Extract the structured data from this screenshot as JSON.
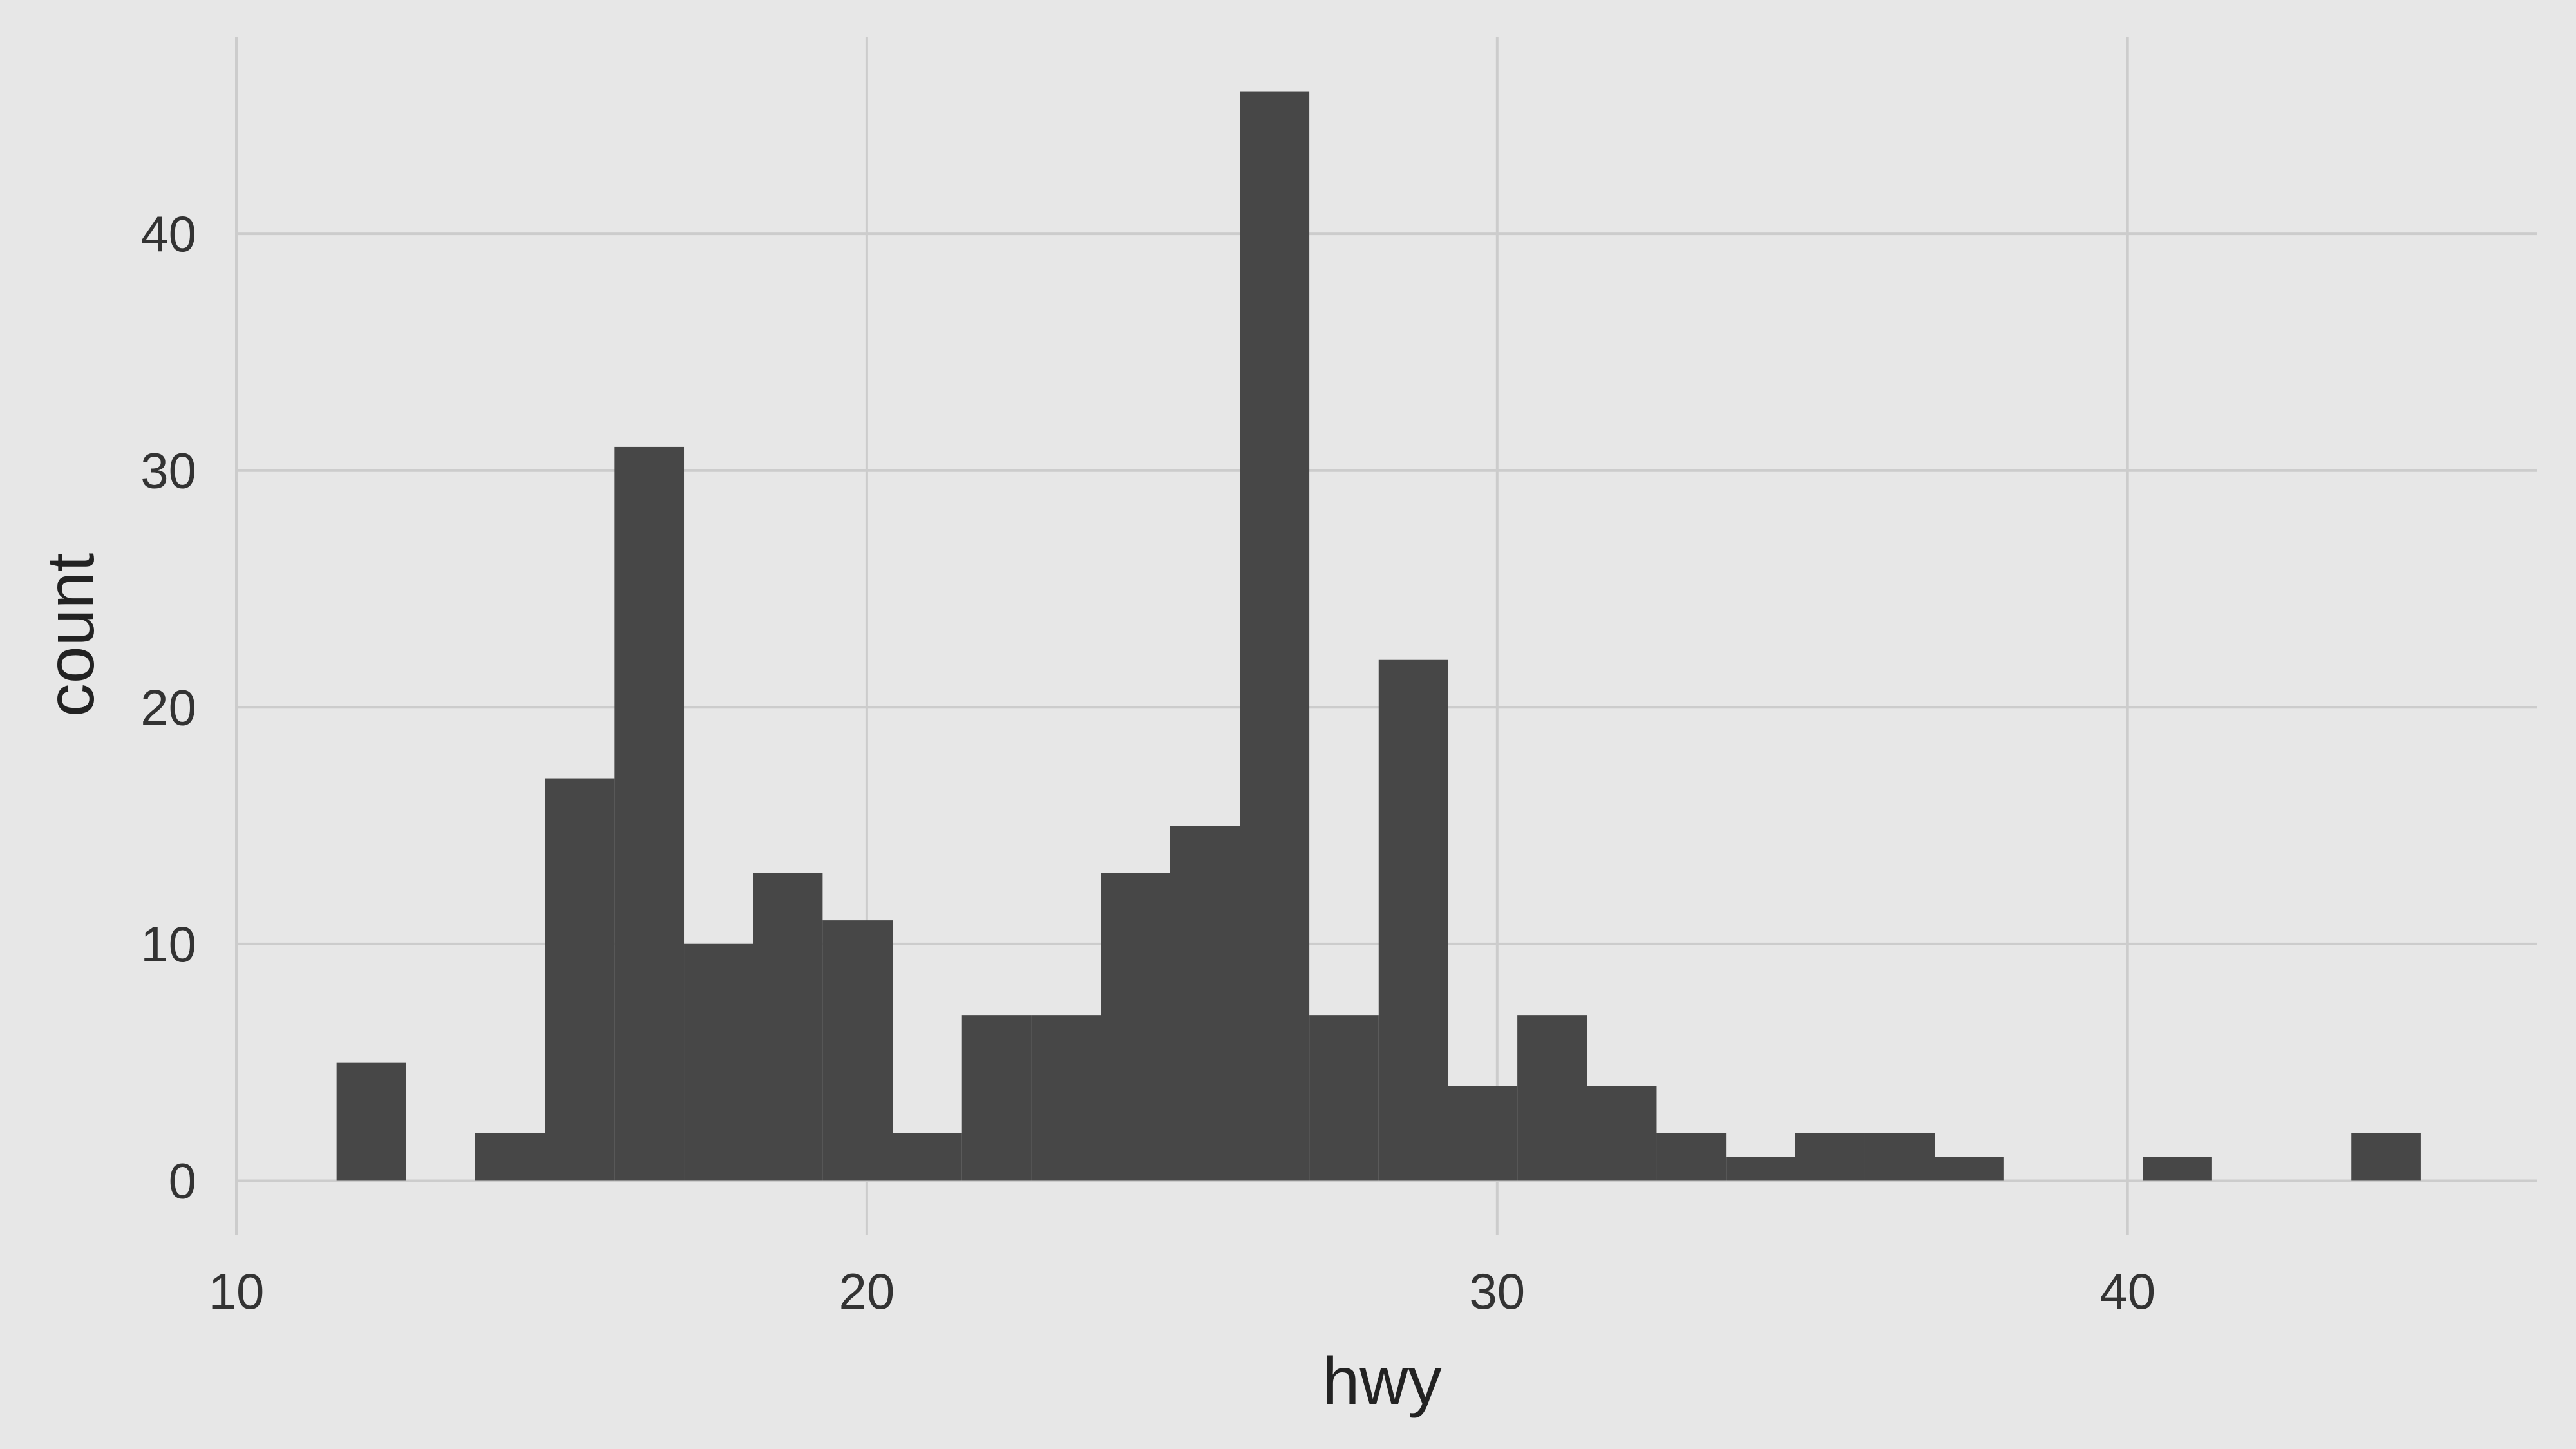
{
  "chart_data": {
    "type": "bar",
    "subtype": "histogram",
    "xlabel": "hwy",
    "ylabel": "count",
    "xlim": [
      10,
      46.5
    ],
    "ylim": [
      -2.3,
      48.3
    ],
    "xticks": [
      10,
      20,
      30,
      40
    ],
    "yticks": [
      0,
      10,
      20,
      30,
      40
    ],
    "grid": true,
    "bar_color": "#474747",
    "background_color": "#e7e7e7",
    "grid_color": "#cccccc",
    "bins": [
      {
        "x0": 11.59,
        "x1": 12.69,
        "count": 5
      },
      {
        "x0": 12.69,
        "x1": 13.79,
        "count": 0
      },
      {
        "x0": 13.79,
        "x1": 14.9,
        "count": 2
      },
      {
        "x0": 14.9,
        "x1": 16.0,
        "count": 17
      },
      {
        "x0": 16.0,
        "x1": 17.1,
        "count": 31
      },
      {
        "x0": 17.1,
        "x1": 18.2,
        "count": 10
      },
      {
        "x0": 18.2,
        "x1": 19.3,
        "count": 13
      },
      {
        "x0": 19.3,
        "x1": 20.41,
        "count": 11
      },
      {
        "x0": 20.41,
        "x1": 21.51,
        "count": 2
      },
      {
        "x0": 21.51,
        "x1": 22.61,
        "count": 7
      },
      {
        "x0": 22.61,
        "x1": 23.71,
        "count": 7
      },
      {
        "x0": 23.71,
        "x1": 24.81,
        "count": 13
      },
      {
        "x0": 24.81,
        "x1": 25.92,
        "count": 15
      },
      {
        "x0": 25.92,
        "x1": 27.02,
        "count": 46
      },
      {
        "x0": 27.02,
        "x1": 28.12,
        "count": 7
      },
      {
        "x0": 28.12,
        "x1": 29.22,
        "count": 22
      },
      {
        "x0": 29.22,
        "x1": 30.32,
        "count": 4
      },
      {
        "x0": 30.32,
        "x1": 31.43,
        "count": 7
      },
      {
        "x0": 31.43,
        "x1": 32.53,
        "count": 4
      },
      {
        "x0": 32.53,
        "x1": 33.63,
        "count": 2
      },
      {
        "x0": 33.63,
        "x1": 34.73,
        "count": 1
      },
      {
        "x0": 34.73,
        "x1": 35.83,
        "count": 2
      },
      {
        "x0": 35.83,
        "x1": 36.94,
        "count": 2
      },
      {
        "x0": 36.94,
        "x1": 38.04,
        "count": 1
      },
      {
        "x0": 38.04,
        "x1": 39.14,
        "count": 0
      },
      {
        "x0": 39.14,
        "x1": 40.24,
        "count": 0
      },
      {
        "x0": 40.24,
        "x1": 41.34,
        "count": 1
      },
      {
        "x0": 41.34,
        "x1": 42.45,
        "count": 0
      },
      {
        "x0": 42.45,
        "x1": 43.55,
        "count": 0
      },
      {
        "x0": 43.55,
        "x1": 44.65,
        "count": 2
      }
    ]
  }
}
